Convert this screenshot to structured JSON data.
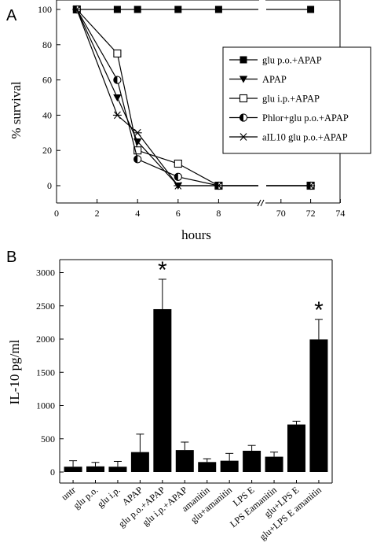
{
  "panels": {
    "a": {
      "label": "A"
    },
    "b": {
      "label": "B"
    }
  },
  "chart_data": [
    {
      "type": "line",
      "title": "",
      "xlabel": "hours",
      "ylabel": "% survival",
      "ylim": [
        -10,
        100
      ],
      "yticks": [
        0,
        20,
        40,
        60,
        80,
        100
      ],
      "x_break": {
        "between": [
          8,
          70
        ]
      },
      "xlim_left": [
        0,
        10
      ],
      "xlim_right": [
        68,
        74
      ],
      "xticks": [
        0,
        2,
        4,
        6,
        8,
        70,
        72,
        74
      ],
      "grid": false,
      "legend_position": "right",
      "series": [
        {
          "name": "glu p.o.+APAP",
          "marker": "filled-square",
          "points": [
            [
              1,
              100
            ],
            [
              3,
              100
            ],
            [
              4,
              100
            ],
            [
              6,
              100
            ],
            [
              8,
              100
            ],
            [
              72,
              100
            ]
          ]
        },
        {
          "name": "APAP",
          "marker": "filled-triangle-down",
          "points": [
            [
              1,
              100
            ],
            [
              3,
              50
            ],
            [
              4,
              25
            ],
            [
              6,
              0
            ],
            [
              8,
              0
            ],
            [
              72,
              0
            ]
          ]
        },
        {
          "name": "glu i.p.+APAP",
          "marker": "open-square",
          "points": [
            [
              1,
              100
            ],
            [
              3,
              75
            ],
            [
              4,
              20
            ],
            [
              6,
              12.5
            ],
            [
              8,
              0
            ],
            [
              72,
              0
            ]
          ]
        },
        {
          "name": "Phlor+glu p.o.+APAP",
          "marker": "half-filled-circle",
          "points": [
            [
              1,
              100
            ],
            [
              3,
              60
            ],
            [
              4,
              15
            ],
            [
              6,
              5
            ],
            [
              8,
              0
            ],
            [
              72,
              0
            ]
          ]
        },
        {
          "name": "aIL10 glu p.o.+APAP",
          "marker": "asterisk",
          "points": [
            [
              1,
              100
            ],
            [
              3,
              40
            ],
            [
              4,
              30
            ],
            [
              6,
              0
            ],
            [
              8,
              0
            ],
            [
              72,
              0
            ]
          ]
        }
      ]
    },
    {
      "type": "bar",
      "title": "",
      "xlabel": "",
      "ylabel": "IL-10 pg/ml",
      "ylim": [
        0,
        3000
      ],
      "yticks": [
        0,
        500,
        1000,
        1500,
        2000,
        2500,
        3000
      ],
      "grid": false,
      "categories": [
        "untr",
        "glu p.o.",
        "glu i.p.",
        "APAP",
        "glu p.o.+APAP",
        "glu i.p.+APAP",
        "amanitin",
        "glu+amanitin",
        "LPS E",
        "LPS Eamanitin",
        "glu+LPS E",
        "glu+LPS E amanitin"
      ],
      "values": [
        80,
        85,
        80,
        300,
        2450,
        330,
        150,
        170,
        320,
        230,
        715,
        1995
      ],
      "errors": [
        90,
        60,
        80,
        270,
        450,
        120,
        50,
        110,
        80,
        70,
        50,
        300
      ],
      "annotations": [
        {
          "category": "glu p.o.+APAP",
          "text": "*"
        },
        {
          "category": "glu+LPS E amanitin",
          "text": "*"
        }
      ],
      "colors": {
        "bar": "#000000"
      }
    }
  ]
}
